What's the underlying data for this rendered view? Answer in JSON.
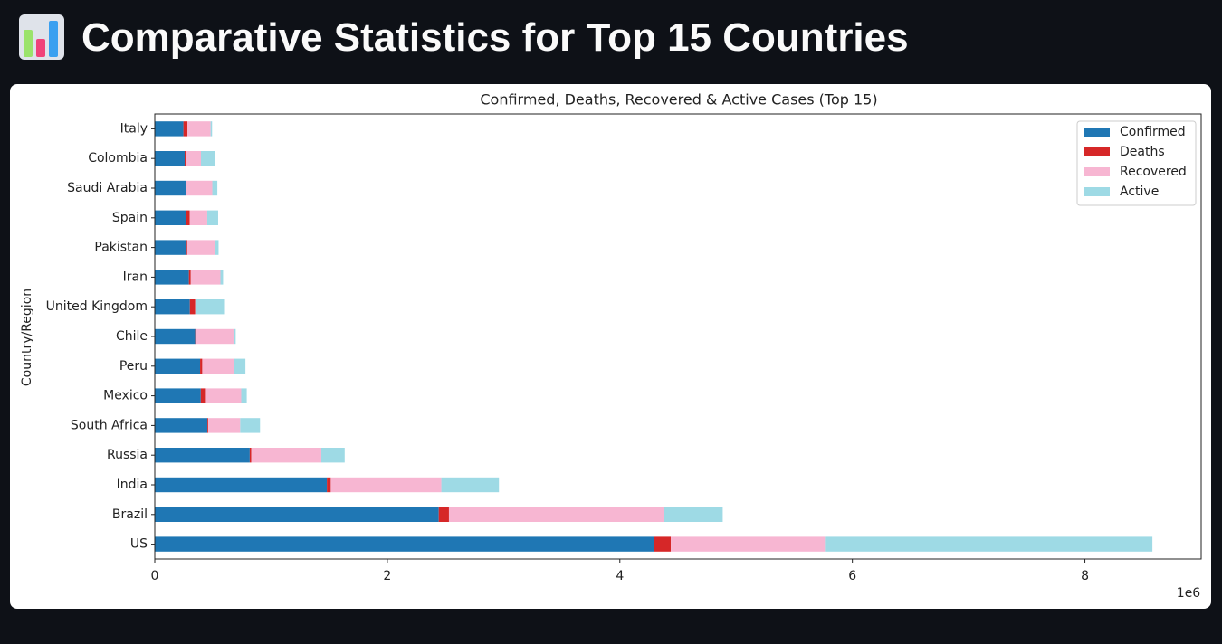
{
  "header": {
    "title": "Comparative Statistics for Top 15 Countries"
  },
  "chart_data": {
    "type": "stacked-barh",
    "title": "Confirmed, Deaths, Recovered & Active Cases (Top 15)",
    "y_label": "Country/Region",
    "x_offset_label": "1e6",
    "categories": [
      "US",
      "Brazil",
      "India",
      "Russia",
      "South Africa",
      "Mexico",
      "Peru",
      "Chile",
      "United Kingdom",
      "Iran",
      "Pakistan",
      "Spain",
      "Saudi Arabia",
      "Colombia",
      "Italy"
    ],
    "series": [
      {
        "name": "Confirmed",
        "color": "#1f77b4",
        "values": [
          4290259,
          2442375,
          1480073,
          816680,
          452529,
          395489,
          389717,
          347923,
          301708,
          293606,
          274289,
          272421,
          268934,
          257101,
          246286
        ]
      },
      {
        "name": "Deaths",
        "color": "#d62728",
        "values": [
          148011,
          87618,
          33408,
          13334,
          7067,
          44022,
          18418,
          9187,
          45844,
          15912,
          5842,
          28432,
          2760,
          8777,
          35112
        ]
      },
      {
        "name": "Recovered",
        "color": "#f7b6d2",
        "values": [
          1325804,
          1846641,
          951166,
          602249,
          274925,
          303810,
          272547,
          319954,
          1437,
          255144,
          241026,
          150376,
          222936,
          131161,
          198593
        ]
      },
      {
        "name": "Active",
        "color": "#9edae5",
        "values": [
          2816444,
          508116,
          495499,
          201097,
          170537,
          47657,
          98752,
          18782,
          254427,
          22550,
          27421,
          93613,
          43238,
          117163,
          12581
        ]
      }
    ],
    "xlim": [
      0,
      9000000
    ],
    "xticks": [
      0,
      {
        "value": 2000000,
        "label": "2"
      },
      {
        "value": 4000000,
        "label": "4"
      },
      {
        "value": 6000000,
        "label": "6"
      },
      {
        "value": 8000000,
        "label": "8"
      }
    ],
    "legend": "upper right"
  }
}
